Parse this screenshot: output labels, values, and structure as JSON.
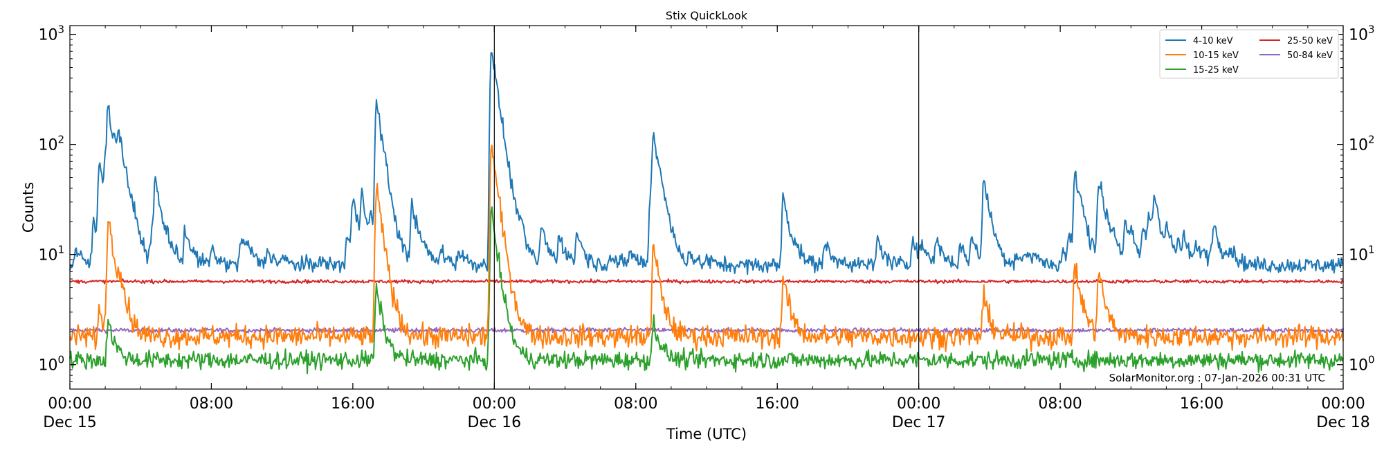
{
  "chart_data": {
    "type": "line",
    "title": "Stix QuickLook",
    "xlabel": "Time (UTC)",
    "ylabel": "Counts",
    "y_scale": "log",
    "ylim": [
      0.6,
      1200
    ],
    "xlim": [
      "2025-12-15 00:00",
      "2025-12-18 00:00"
    ],
    "x_ticks": [
      {
        "time": "2025-12-15 00:00",
        "lines": [
          "00:00",
          "Dec 15"
        ]
      },
      {
        "time": "2025-12-15 08:00",
        "lines": [
          "08:00"
        ]
      },
      {
        "time": "2025-12-15 16:00",
        "lines": [
          "16:00"
        ]
      },
      {
        "time": "2025-12-16 00:00",
        "lines": [
          "00:00",
          "Dec 16"
        ]
      },
      {
        "time": "2025-12-16 08:00",
        "lines": [
          "08:00"
        ]
      },
      {
        "time": "2025-12-16 16:00",
        "lines": [
          "16:00"
        ]
      },
      {
        "time": "2025-12-17 00:00",
        "lines": [
          "00:00",
          "Dec 17"
        ]
      },
      {
        "time": "2025-12-17 08:00",
        "lines": [
          "08:00"
        ]
      },
      {
        "time": "2025-12-17 16:00",
        "lines": [
          "16:00"
        ]
      },
      {
        "time": "2025-12-18 00:00",
        "lines": [
          "00:00",
          "Dec 18"
        ]
      }
    ],
    "y_ticks": [
      {
        "value": 1,
        "base": "10",
        "exp": "0"
      },
      {
        "value": 10,
        "base": "10",
        "exp": "1"
      },
      {
        "value": 100,
        "base": "10",
        "exp": "2"
      },
      {
        "value": 1000,
        "base": "10",
        "exp": "3"
      }
    ],
    "day_boundaries": [
      "2025-12-16 00:00",
      "2025-12-17 00:00"
    ],
    "legend_position": "top-right",
    "annotation": "SolarMonitor.org : 07-Jan-2026 00:31 UTC",
    "series": [
      {
        "name": "4-10 keV",
        "color": "#1f77b4",
        "baseline": 8,
        "noise": 0.07,
        "points": [
          [
            "2025-12-15 00:20",
            11
          ],
          [
            "2025-12-15 01:20",
            20
          ],
          [
            "2025-12-15 01:40",
            70
          ],
          [
            "2025-12-15 02:00",
            60
          ],
          [
            "2025-12-15 02:10",
            180
          ],
          [
            "2025-12-15 02:30",
            40
          ],
          [
            "2025-12-15 02:45",
            90
          ],
          [
            "2025-12-15 03:10",
            20
          ],
          [
            "2025-12-15 03:40",
            12
          ],
          [
            "2025-12-15 04:40",
            20
          ],
          [
            "2025-12-15 04:50",
            40
          ],
          [
            "2025-12-15 05:30",
            11
          ],
          [
            "2025-12-15 06:30",
            17
          ],
          [
            "2025-12-15 08:00",
            11
          ],
          [
            "2025-12-15 09:40",
            14
          ],
          [
            "2025-12-15 10:00",
            11
          ],
          [
            "2025-12-15 11:10",
            11
          ],
          [
            "2025-12-15 12:00",
            9
          ],
          [
            "2025-12-15 14:00",
            9
          ],
          [
            "2025-12-15 15:40",
            15
          ],
          [
            "2025-12-15 16:00",
            30
          ],
          [
            "2025-12-15 16:30",
            33
          ],
          [
            "2025-12-15 17:00",
            16
          ],
          [
            "2025-12-15 17:20",
            245
          ],
          [
            "2025-12-15 17:40",
            20
          ],
          [
            "2025-12-15 19:20",
            30
          ],
          [
            "2025-12-15 20:00",
            10
          ],
          [
            "2025-12-15 21:00",
            11
          ],
          [
            "2025-12-15 22:00",
            11
          ],
          [
            "2025-12-15 23:50",
            780
          ],
          [
            "2025-12-16 00:20",
            30
          ],
          [
            "2025-12-16 00:50",
            12
          ],
          [
            "2025-12-16 01:20",
            14
          ],
          [
            "2025-12-16 02:40",
            18
          ],
          [
            "2025-12-16 03:40",
            15
          ],
          [
            "2025-12-16 04:40",
            16
          ],
          [
            "2025-12-16 06:30",
            10
          ],
          [
            "2025-12-16 07:40",
            11
          ],
          [
            "2025-12-16 08:50",
            40
          ],
          [
            "2025-12-16 09:00",
            110
          ],
          [
            "2025-12-16 09:20",
            20
          ],
          [
            "2025-12-16 09:40",
            11
          ],
          [
            "2025-12-16 11:00",
            10
          ],
          [
            "2025-12-16 12:00",
            9
          ],
          [
            "2025-12-16 16:20",
            35
          ],
          [
            "2025-12-16 17:00",
            10
          ],
          [
            "2025-12-16 18:40",
            13
          ],
          [
            "2025-12-16 19:40",
            9
          ],
          [
            "2025-12-16 21:40",
            14
          ],
          [
            "2025-12-16 23:40",
            15
          ],
          [
            "2025-12-17 00:10",
            11
          ],
          [
            "2025-12-17 01:00",
            14
          ],
          [
            "2025-12-17 02:20",
            12
          ],
          [
            "2025-12-17 03:00",
            14
          ],
          [
            "2025-12-17 03:40",
            48
          ],
          [
            "2025-12-17 04:00",
            10
          ],
          [
            "2025-12-17 05:30",
            10
          ],
          [
            "2025-12-17 06:00",
            10
          ],
          [
            "2025-12-17 06:30",
            10
          ],
          [
            "2025-12-17 09:50",
            10
          ],
          [
            "2025-12-17 10:40",
            12
          ],
          [
            "2025-12-17 11:00",
            12
          ],
          [
            "2025-12-17 12:40",
            16
          ],
          [
            "2025-12-17 13:00",
            20
          ],
          [
            "2025-12-17 13:20",
            28
          ],
          [
            "2025-12-17 14:00",
            15
          ],
          [
            "2025-12-17 15:00",
            12
          ],
          [
            "2025-12-17 16:40",
            18
          ],
          [
            "2025-12-17 17:20",
            10
          ],
          [
            "2025-12-17 08:10",
            11
          ],
          [
            "2025-12-17 08:30",
            14
          ],
          [
            "2025-12-17 08:50",
            55
          ],
          [
            "2025-12-17 09:10",
            14
          ],
          [
            "2025-12-17 10:10",
            44
          ],
          [
            "2025-12-17 10:20",
            13
          ],
          [
            "2025-12-17 11:40",
            18
          ],
          [
            "2025-12-17 12:00",
            12
          ],
          [
            "2025-12-17 13:10",
            11
          ],
          [
            "2025-12-17 14:40",
            12
          ],
          [
            "2025-12-17 15:40",
            11
          ],
          [
            "2025-12-17 16:00",
            10
          ],
          [
            "2025-12-17 16:30",
            10
          ],
          [
            "2025-12-17 17:40",
            10
          ]
        ]
      },
      {
        "name": "10-15 keV",
        "color": "#ff7f0e",
        "baseline": 1.8,
        "noise": 0.1,
        "points": [
          [
            "2025-12-15 01:40",
            3
          ],
          [
            "2025-12-15 02:10",
            22
          ],
          [
            "2025-12-15 02:45",
            5
          ],
          [
            "2025-12-15 17:20",
            40
          ],
          [
            "2025-12-15 23:50",
            100
          ],
          [
            "2025-12-16 09:00",
            12
          ],
          [
            "2025-12-16 16:20",
            6
          ],
          [
            "2025-12-17 03:40",
            4
          ],
          [
            "2025-12-17 08:50",
            8
          ],
          [
            "2025-12-17 10:10",
            7
          ]
        ]
      },
      {
        "name": "15-25 keV",
        "color": "#2ca02c",
        "baseline": 1.1,
        "noise": 0.08,
        "points": [
          [
            "2025-12-15 02:10",
            2.5
          ],
          [
            "2025-12-15 17:20",
            5
          ],
          [
            "2025-12-15 23:50",
            25
          ],
          [
            "2025-12-16 09:00",
            2.5
          ]
        ]
      },
      {
        "name": "25-50 keV",
        "color": "#d62728",
        "baseline": 5.7,
        "noise": 0.015,
        "points": []
      },
      {
        "name": "50-84 keV",
        "color": "#9467bd",
        "baseline": 2.05,
        "noise": 0.02,
        "points": []
      }
    ]
  }
}
